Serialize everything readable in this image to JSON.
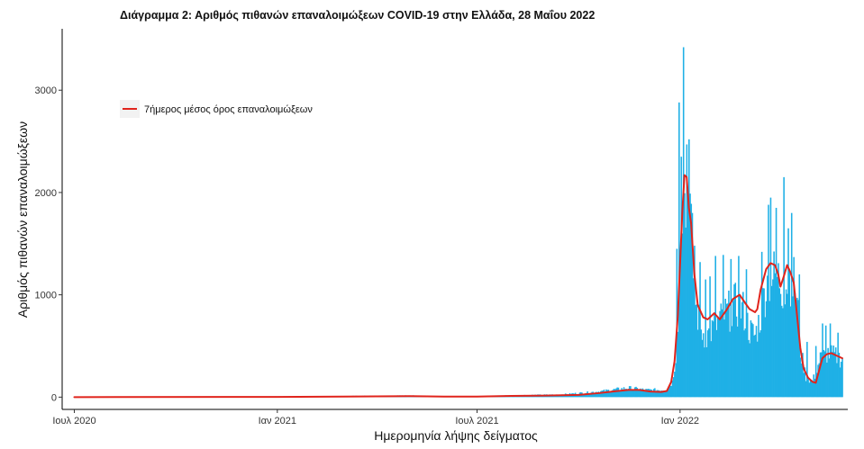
{
  "chart_data": {
    "type": "bar",
    "title": "Διάγραμμα 2: Αριθμός πιθανών επαναλοιμώξεων COVID-19 στην Ελλάδα, 28 Μαΐου 2022",
    "xlabel": "Ημερομηνία λήψης δείγματος",
    "ylabel": "Αριθμός πιθανών επαναλοιμώξεων",
    "x_ticks": [
      {
        "date": "2020-07-01",
        "label": "Ιουλ 2020"
      },
      {
        "date": "2021-01-01",
        "label": "Ιαν 2021"
      },
      {
        "date": "2021-07-01",
        "label": "Ιουλ 2021"
      },
      {
        "date": "2022-01-01",
        "label": "Ιαν 2022"
      }
    ],
    "y_ticks": [
      0,
      1000,
      2000,
      3000
    ],
    "xlim": [
      "2020-06-20",
      "2022-06-02"
    ],
    "ylim": [
      -120,
      3600
    ],
    "bar_color": "#1fb0e6",
    "line_color": "#e0241c",
    "legend": {
      "position": "top-left",
      "entries": [
        {
          "label": "7ήμερος μέσος όρος επαναλοιμώξεων",
          "color": "#e0241c"
        }
      ]
    },
    "bar_anchors": [
      [
        "2020-07-01",
        2
      ],
      [
        "2020-12-01",
        5
      ],
      [
        "2021-03-01",
        10
      ],
      [
        "2021-05-01",
        15
      ],
      [
        "2021-06-15",
        5
      ],
      [
        "2021-07-15",
        12
      ],
      [
        "2021-08-15",
        20
      ],
      [
        "2021-09-15",
        25
      ],
      [
        "2021-10-20",
        55
      ],
      [
        "2021-11-15",
        90
      ],
      [
        "2021-12-01",
        70
      ],
      [
        "2021-12-15",
        70
      ],
      [
        "2021-12-20",
        80
      ],
      [
        "2021-12-25",
        150
      ],
      [
        "2021-12-28",
        400
      ],
      [
        "2021-12-30",
        800
      ],
      [
        "2022-01-01",
        1300
      ],
      [
        "2022-01-03",
        1750
      ],
      [
        "2022-01-06",
        2100
      ],
      [
        "2022-01-10",
        1700
      ],
      [
        "2022-01-15",
        900
      ],
      [
        "2022-01-20",
        650
      ],
      [
        "2022-01-25",
        600
      ],
      [
        "2022-02-01",
        680
      ],
      [
        "2022-02-10",
        800
      ],
      [
        "2022-02-20",
        900
      ],
      [
        "2022-02-27",
        850
      ],
      [
        "2022-03-05",
        650
      ],
      [
        "2022-03-10",
        600
      ],
      [
        "2022-03-15",
        800
      ],
      [
        "2022-03-20",
        1100
      ],
      [
        "2022-03-25",
        1200
      ],
      [
        "2022-04-01",
        1150
      ],
      [
        "2022-04-05",
        1050
      ],
      [
        "2022-04-10",
        1200
      ],
      [
        "2022-04-15",
        1100
      ],
      [
        "2022-04-18",
        800
      ],
      [
        "2022-04-20",
        450
      ],
      [
        "2022-04-25",
        200
      ],
      [
        "2022-05-01",
        150
      ],
      [
        "2022-05-08",
        380
      ],
      [
        "2022-05-15",
        430
      ],
      [
        "2022-05-22",
        400
      ],
      [
        "2022-05-28",
        370
      ]
    ],
    "bar_spikes": [
      [
        "2022-01-04",
        3420
      ],
      [
        "2022-01-07",
        2470
      ],
      [
        "2022-01-09",
        2520
      ],
      [
        "2022-01-12",
        1800
      ],
      [
        "2021-12-29",
        1450
      ],
      [
        "2021-12-31",
        2880
      ],
      [
        "2022-01-02",
        2350
      ],
      [
        "2022-01-14",
        1480
      ],
      [
        "2022-01-19",
        1320
      ],
      [
        "2022-01-24",
        1150
      ],
      [
        "2022-01-28",
        1180
      ],
      [
        "2022-02-02",
        1380
      ],
      [
        "2022-02-09",
        1390
      ],
      [
        "2022-02-16",
        1350
      ],
      [
        "2022-02-23",
        1380
      ],
      [
        "2022-03-02",
        1250
      ],
      [
        "2022-03-16",
        1420
      ],
      [
        "2022-03-22",
        1880
      ],
      [
        "2022-03-24",
        1950
      ],
      [
        "2022-03-29",
        1850
      ],
      [
        "2022-04-05",
        2150
      ],
      [
        "2022-04-09",
        1650
      ],
      [
        "2022-04-12",
        1800
      ],
      [
        "2022-04-19",
        1200
      ],
      [
        "2022-04-26",
        540
      ],
      [
        "2022-05-04",
        500
      ],
      [
        "2022-05-10",
        720
      ],
      [
        "2022-05-13",
        700
      ],
      [
        "2022-05-17",
        720
      ],
      [
        "2022-05-24",
        630
      ]
    ],
    "line_points": [
      [
        "2020-07-01",
        0
      ],
      [
        "2021-01-01",
        2
      ],
      [
        "2021-03-01",
        5
      ],
      [
        "2021-04-01",
        8
      ],
      [
        "2021-05-01",
        10
      ],
      [
        "2021-06-01",
        5
      ],
      [
        "2021-07-01",
        5
      ],
      [
        "2021-08-01",
        12
      ],
      [
        "2021-09-01",
        15
      ],
      [
        "2021-10-01",
        22
      ],
      [
        "2021-10-20",
        40
      ],
      [
        "2021-11-01",
        55
      ],
      [
        "2021-11-15",
        70
      ],
      [
        "2021-11-25",
        70
      ],
      [
        "2021-12-05",
        55
      ],
      [
        "2021-12-15",
        50
      ],
      [
        "2021-12-20",
        60
      ],
      [
        "2021-12-24",
        150
      ],
      [
        "2021-12-27",
        350
      ],
      [
        "2021-12-30",
        800
      ],
      [
        "2022-01-01",
        1300
      ],
      [
        "2022-01-03",
        1800
      ],
      [
        "2022-01-05",
        2170
      ],
      [
        "2022-01-07",
        2150
      ],
      [
        "2022-01-09",
        1850
      ],
      [
        "2022-01-11",
        1700
      ],
      [
        "2022-01-14",
        1200
      ],
      [
        "2022-01-17",
        900
      ],
      [
        "2022-01-22",
        780
      ],
      [
        "2022-01-26",
        760
      ],
      [
        "2022-02-01",
        820
      ],
      [
        "2022-02-06",
        760
      ],
      [
        "2022-02-12",
        850
      ],
      [
        "2022-02-18",
        960
      ],
      [
        "2022-02-24",
        1000
      ],
      [
        "2022-03-01",
        920
      ],
      [
        "2022-03-05",
        860
      ],
      [
        "2022-03-10",
        830
      ],
      [
        "2022-03-12",
        860
      ],
      [
        "2022-03-15",
        1050
      ],
      [
        "2022-03-20",
        1250
      ],
      [
        "2022-03-24",
        1310
      ],
      [
        "2022-03-28",
        1290
      ],
      [
        "2022-03-31",
        1200
      ],
      [
        "2022-04-02",
        1080
      ],
      [
        "2022-04-05",
        1180
      ],
      [
        "2022-04-08",
        1290
      ],
      [
        "2022-04-11",
        1220
      ],
      [
        "2022-04-14",
        1120
      ],
      [
        "2022-04-17",
        800
      ],
      [
        "2022-04-20",
        480
      ],
      [
        "2022-04-23",
        280
      ],
      [
        "2022-04-27",
        190
      ],
      [
        "2022-05-01",
        150
      ],
      [
        "2022-05-04",
        140
      ],
      [
        "2022-05-07",
        260
      ],
      [
        "2022-05-10",
        380
      ],
      [
        "2022-05-14",
        420
      ],
      [
        "2022-05-18",
        430
      ],
      [
        "2022-05-22",
        410
      ],
      [
        "2022-05-26",
        390
      ],
      [
        "2022-05-28",
        380
      ]
    ]
  }
}
